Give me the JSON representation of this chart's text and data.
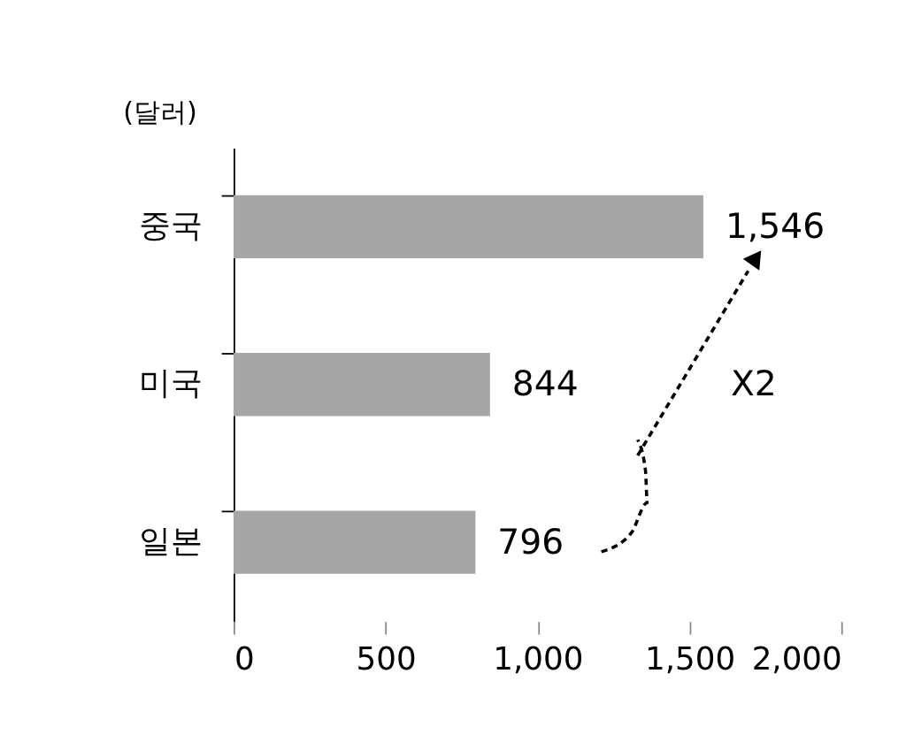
{
  "chart_data": {
    "type": "bar",
    "orientation": "horizontal",
    "ylabel": "(달러)",
    "categories": [
      "중국",
      "미국",
      "일본"
    ],
    "values": [
      1546,
      844,
      796
    ],
    "colors": [
      "#a6a6a6",
      "#a6a6a6",
      "#a6a6a6"
    ],
    "value_labels": [
      "1,546",
      "844",
      "796"
    ],
    "xlim": [
      0,
      2000
    ],
    "xticks": [
      0,
      500,
      {
        "value": 1000,
        "label": "1,000"
      },
      {
        "value": 1500,
        "label": "1,500"
      },
      {
        "value": 2000,
        "label": "2,000"
      }
    ],
    "grid": false,
    "annotations": [
      "X2"
    ]
  }
}
